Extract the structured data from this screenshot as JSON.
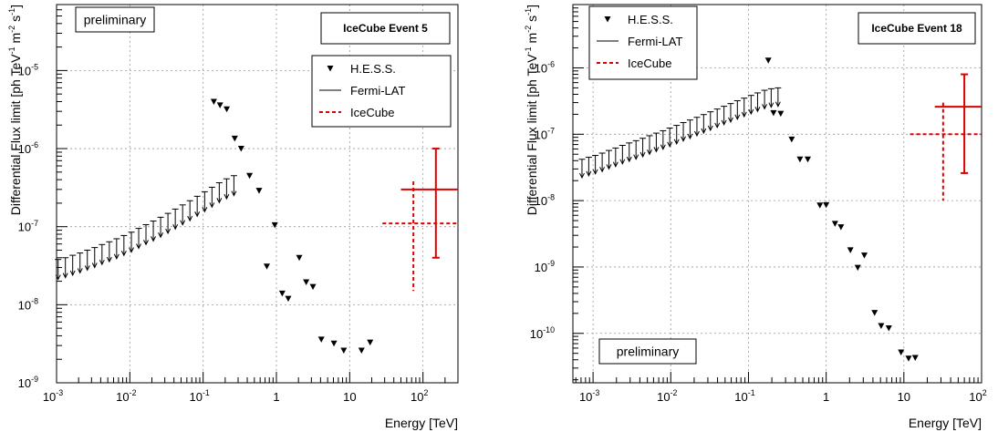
{
  "chart_data": [
    {
      "type": "scatter",
      "title": "IceCube Event 5",
      "badge": "preliminary",
      "xlabel": "Energy [TeV]",
      "ylabel_parts": [
        "Differential Flux limit [ph TeV",
        "-1",
        " m",
        "-2",
        " s",
        "-1",
        "]"
      ],
      "xscale": "log",
      "yscale": "log",
      "xlim": [
        0.001,
        300
      ],
      "ylim": [
        1e-09,
        7e-05
      ],
      "xticks": [
        {
          "label_base": "10",
          "label_exp": "-3",
          "value": 0.001
        },
        {
          "label_base": "10",
          "label_exp": "-2",
          "value": 0.01
        },
        {
          "label_base": "10",
          "label_exp": "-1",
          "value": 0.1
        },
        {
          "label_base": "1",
          "label_exp": "",
          "value": 1
        },
        {
          "label_base": "10",
          "label_exp": "",
          "value": 10
        },
        {
          "label_base": "10",
          "label_exp": "2",
          "value": 100
        }
      ],
      "yticks": [
        {
          "label_base": "10",
          "label_exp": "-9",
          "value": 1e-09
        },
        {
          "label_base": "10",
          "label_exp": "-8",
          "value": 1e-08
        },
        {
          "label_base": "10",
          "label_exp": "-7",
          "value": 1e-07
        },
        {
          "label_base": "10",
          "label_exp": "-6",
          "value": 1e-06
        },
        {
          "label_base": "10",
          "label_exp": "-5",
          "value": 1e-05
        }
      ],
      "grid": true,
      "legend_position": "top-right",
      "series": [
        {
          "name": "H.E.S.S.",
          "kind": "marker",
          "color": "#000000",
          "points": [
            [
              0.14,
              4e-06
            ],
            [
              0.17,
              3.6e-06
            ],
            [
              0.21,
              3.2e-06
            ],
            [
              0.27,
              1.35e-06
            ],
            [
              0.33,
              1e-06
            ],
            [
              0.43,
              4.5e-07
            ],
            [
              0.58,
              2.9e-07
            ],
            [
              0.74,
              3.1e-08
            ],
            [
              0.95,
              1.05e-07
            ],
            [
              1.2,
              1.4e-08
            ],
            [
              1.45,
              1.2e-08
            ],
            [
              2.05,
              4e-08
            ],
            [
              2.55,
              1.95e-08
            ],
            [
              3.15,
              1.7e-08
            ],
            [
              4.1,
              3.6e-09
            ],
            [
              6.1,
              3.2e-09
            ],
            [
              8.3,
              2.6e-09
            ],
            [
              14.5,
              2.6e-09
            ],
            [
              19.0,
              3.3e-09
            ]
          ]
        },
        {
          "name": "Fermi-LAT",
          "kind": "upper-limit",
          "color": "#000000",
          "arrow_factor": 1.8,
          "points": [
            [
              0.00105,
              3.8e-08
            ],
            [
              0.00132,
              4e-08
            ],
            [
              0.00166,
              4.3e-08
            ],
            [
              0.00209,
              4.6e-08
            ],
            [
              0.00263,
              5e-08
            ],
            [
              0.00331,
              5.4e-08
            ],
            [
              0.00417,
              5.9e-08
            ],
            [
              0.00525,
              6.4e-08
            ],
            [
              0.0066,
              7e-08
            ],
            [
              0.0083,
              7.7e-08
            ],
            [
              0.0105,
              8.5e-08
            ],
            [
              0.0132,
              9.5e-08
            ],
            [
              0.0166,
              1.06e-07
            ],
            [
              0.0209,
              1.18e-07
            ],
            [
              0.0263,
              1.32e-07
            ],
            [
              0.0331,
              1.48e-07
            ],
            [
              0.0417,
              1.68e-07
            ],
            [
              0.0525,
              1.9e-07
            ],
            [
              0.066,
              2.15e-07
            ],
            [
              0.083,
              2.45e-07
            ],
            [
              0.105,
              2.8e-07
            ],
            [
              0.132,
              3.2e-07
            ],
            [
              0.166,
              3.65e-07
            ],
            [
              0.209,
              4.1e-07
            ],
            [
              0.263,
              4.5e-07
            ]
          ]
        },
        {
          "name": "IceCube",
          "kind": "errorbar",
          "color": "#e00000",
          "points": [
            {
              "x": 74,
              "y": 1.1e-07,
              "xlo": 28,
              "xhi": 300,
              "ylo": 1.5e-08,
              "yhi": 3.8e-07,
              "dashed": true
            },
            {
              "x": 150,
              "y": 3e-07,
              "xlo": 50,
              "xhi": 300,
              "ylo": 4e-08,
              "yhi": 1e-06,
              "dashed": false
            }
          ]
        }
      ]
    },
    {
      "type": "scatter",
      "title": "IceCube Event 18",
      "badge": "preliminary",
      "xlabel": "Energy [TeV]",
      "ylabel_parts": [
        "Differential Flux limit [ph TeV",
        "-1",
        " m",
        "-2",
        " s",
        "-1",
        "]"
      ],
      "xscale": "log",
      "yscale": "log",
      "xlim": [
        0.00055,
        100
      ],
      "ylim": [
        1.8e-11,
        9e-06
      ],
      "xticks": [
        {
          "label_base": "10",
          "label_exp": "-3",
          "value": 0.001
        },
        {
          "label_base": "10",
          "label_exp": "-2",
          "value": 0.01
        },
        {
          "label_base": "10",
          "label_exp": "-1",
          "value": 0.1
        },
        {
          "label_base": "1",
          "label_exp": "",
          "value": 1
        },
        {
          "label_base": "10",
          "label_exp": "",
          "value": 10
        },
        {
          "label_base": "10",
          "label_exp": "2",
          "value": 100
        }
      ],
      "yticks": [
        {
          "label_base": "10",
          "label_exp": "-10",
          "value": 1e-10
        },
        {
          "label_base": "10",
          "label_exp": "-9",
          "value": 1e-09
        },
        {
          "label_base": "10",
          "label_exp": "-8",
          "value": 1e-08
        },
        {
          "label_base": "10",
          "label_exp": "-7",
          "value": 1e-07
        },
        {
          "label_base": "10",
          "label_exp": "-6",
          "value": 1e-06
        }
      ],
      "grid": true,
      "legend_position": "top-left",
      "series": [
        {
          "name": "H.E.S.S.",
          "kind": "marker",
          "color": "#000000",
          "points": [
            [
              0.18,
              1.3e-06
            ],
            [
              0.21,
              2.1e-07
            ],
            [
              0.26,
              2.05e-07
            ],
            [
              0.36,
              8.4e-08
            ],
            [
              0.46,
              4.2e-08
            ],
            [
              0.58,
              4.2e-08
            ],
            [
              0.83,
              8.5e-09
            ],
            [
              1.0,
              8.6e-09
            ],
            [
              1.3,
              4.5e-09
            ],
            [
              1.55,
              4e-09
            ],
            [
              2.05,
              1.8e-09
            ],
            [
              2.55,
              9.8e-10
            ],
            [
              3.1,
              1.5e-09
            ],
            [
              4.2,
              2.05e-10
            ],
            [
              5.1,
              1.3e-10
            ],
            [
              6.4,
              1.2e-10
            ],
            [
              9.2,
              5.2e-11
            ],
            [
              11.5,
              4.2e-11
            ],
            [
              14.0,
              4.3e-11
            ]
          ]
        },
        {
          "name": "Fermi-LAT",
          "kind": "upper-limit",
          "color": "#000000",
          "arrow_factor": 1.9,
          "points": [
            [
              0.00072,
              4.2e-08
            ],
            [
              0.00088,
              4.5e-08
            ],
            [
              0.00107,
              4.8e-08
            ],
            [
              0.00131,
              5.2e-08
            ],
            [
              0.0016,
              5.7e-08
            ],
            [
              0.00195,
              6.2e-08
            ],
            [
              0.00239,
              6.8e-08
            ],
            [
              0.00292,
              7.4e-08
            ],
            [
              0.00357,
              8e-08
            ],
            [
              0.00436,
              8.7e-08
            ],
            [
              0.00533,
              9.5e-08
            ],
            [
              0.00651,
              1.04e-07
            ],
            [
              0.00796,
              1.13e-07
            ],
            [
              0.0097,
              1.24e-07
            ],
            [
              0.0119,
              1.36e-07
            ],
            [
              0.0145,
              1.5e-07
            ],
            [
              0.0177,
              1.64e-07
            ],
            [
              0.0217,
              1.8e-07
            ],
            [
              0.0265,
              1.98e-07
            ],
            [
              0.0324,
              2.18e-07
            ],
            [
              0.0396,
              2.4e-07
            ],
            [
              0.0484,
              2.64e-07
            ],
            [
              0.059,
              2.9e-07
            ],
            [
              0.072,
              3.2e-07
            ],
            [
              0.088,
              3.5e-07
            ],
            [
              0.108,
              3.85e-07
            ],
            [
              0.131,
              4.2e-07
            ],
            [
              0.161,
              4.6e-07
            ],
            [
              0.196,
              4.85e-07
            ],
            [
              0.24,
              5e-07
            ]
          ]
        },
        {
          "name": "IceCube",
          "kind": "errorbar",
          "color": "#e00000",
          "points": [
            {
              "x": 32,
              "y": 1e-07,
              "xlo": 12,
              "xhi": 100,
              "ylo": 1e-08,
              "yhi": 3e-07,
              "dashed": true
            },
            {
              "x": 60,
              "y": 2.6e-07,
              "xlo": 25,
              "xhi": 100,
              "ylo": 2.6e-08,
              "yhi": 8e-07,
              "dashed": false
            }
          ]
        }
      ]
    }
  ]
}
